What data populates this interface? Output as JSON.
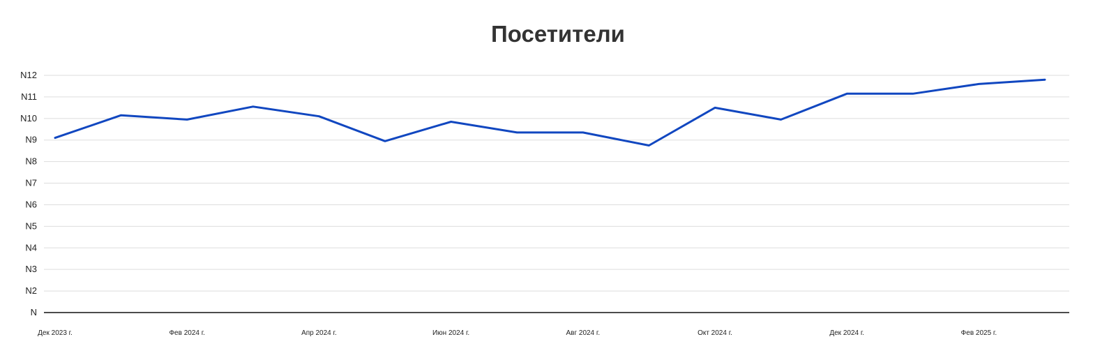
{
  "chart_data": {
    "type": "line",
    "title": "Посетители",
    "xlabel": "",
    "ylabel": "",
    "x": [
      "2023-12",
      "2024-01",
      "2024-02",
      "2024-03",
      "2024-04",
      "2024-05",
      "2024-06",
      "2024-07",
      "2024-08",
      "2024-09",
      "2024-10",
      "2024-11",
      "2024-12",
      "2025-01",
      "2025-02",
      "2025-03"
    ],
    "x_tick_labels": [
      "Дек 2023 г.",
      "Фев 2024 г.",
      "Апр 2024 г.",
      "Июн 2024 г.",
      "Авг 2024 г.",
      "Окт 2024 г.",
      "Дек 2024 г.",
      "Фев 2025 г."
    ],
    "y_tick_labels": [
      "N",
      "N2",
      "N3",
      "N4",
      "N5",
      "N6",
      "N7",
      "N8",
      "N9",
      "N10",
      "N11",
      "N12"
    ],
    "ylim": [
      1,
      12
    ],
    "grid": true,
    "series": [
      {
        "values": [
          9.1,
          10.15,
          9.95,
          10.55,
          10.1,
          8.95,
          9.85,
          9.35,
          9.35,
          8.75,
          10.5,
          9.95,
          11.15,
          11.15,
          11.6,
          11.8
        ],
        "color": "#1147c0"
      }
    ]
  }
}
